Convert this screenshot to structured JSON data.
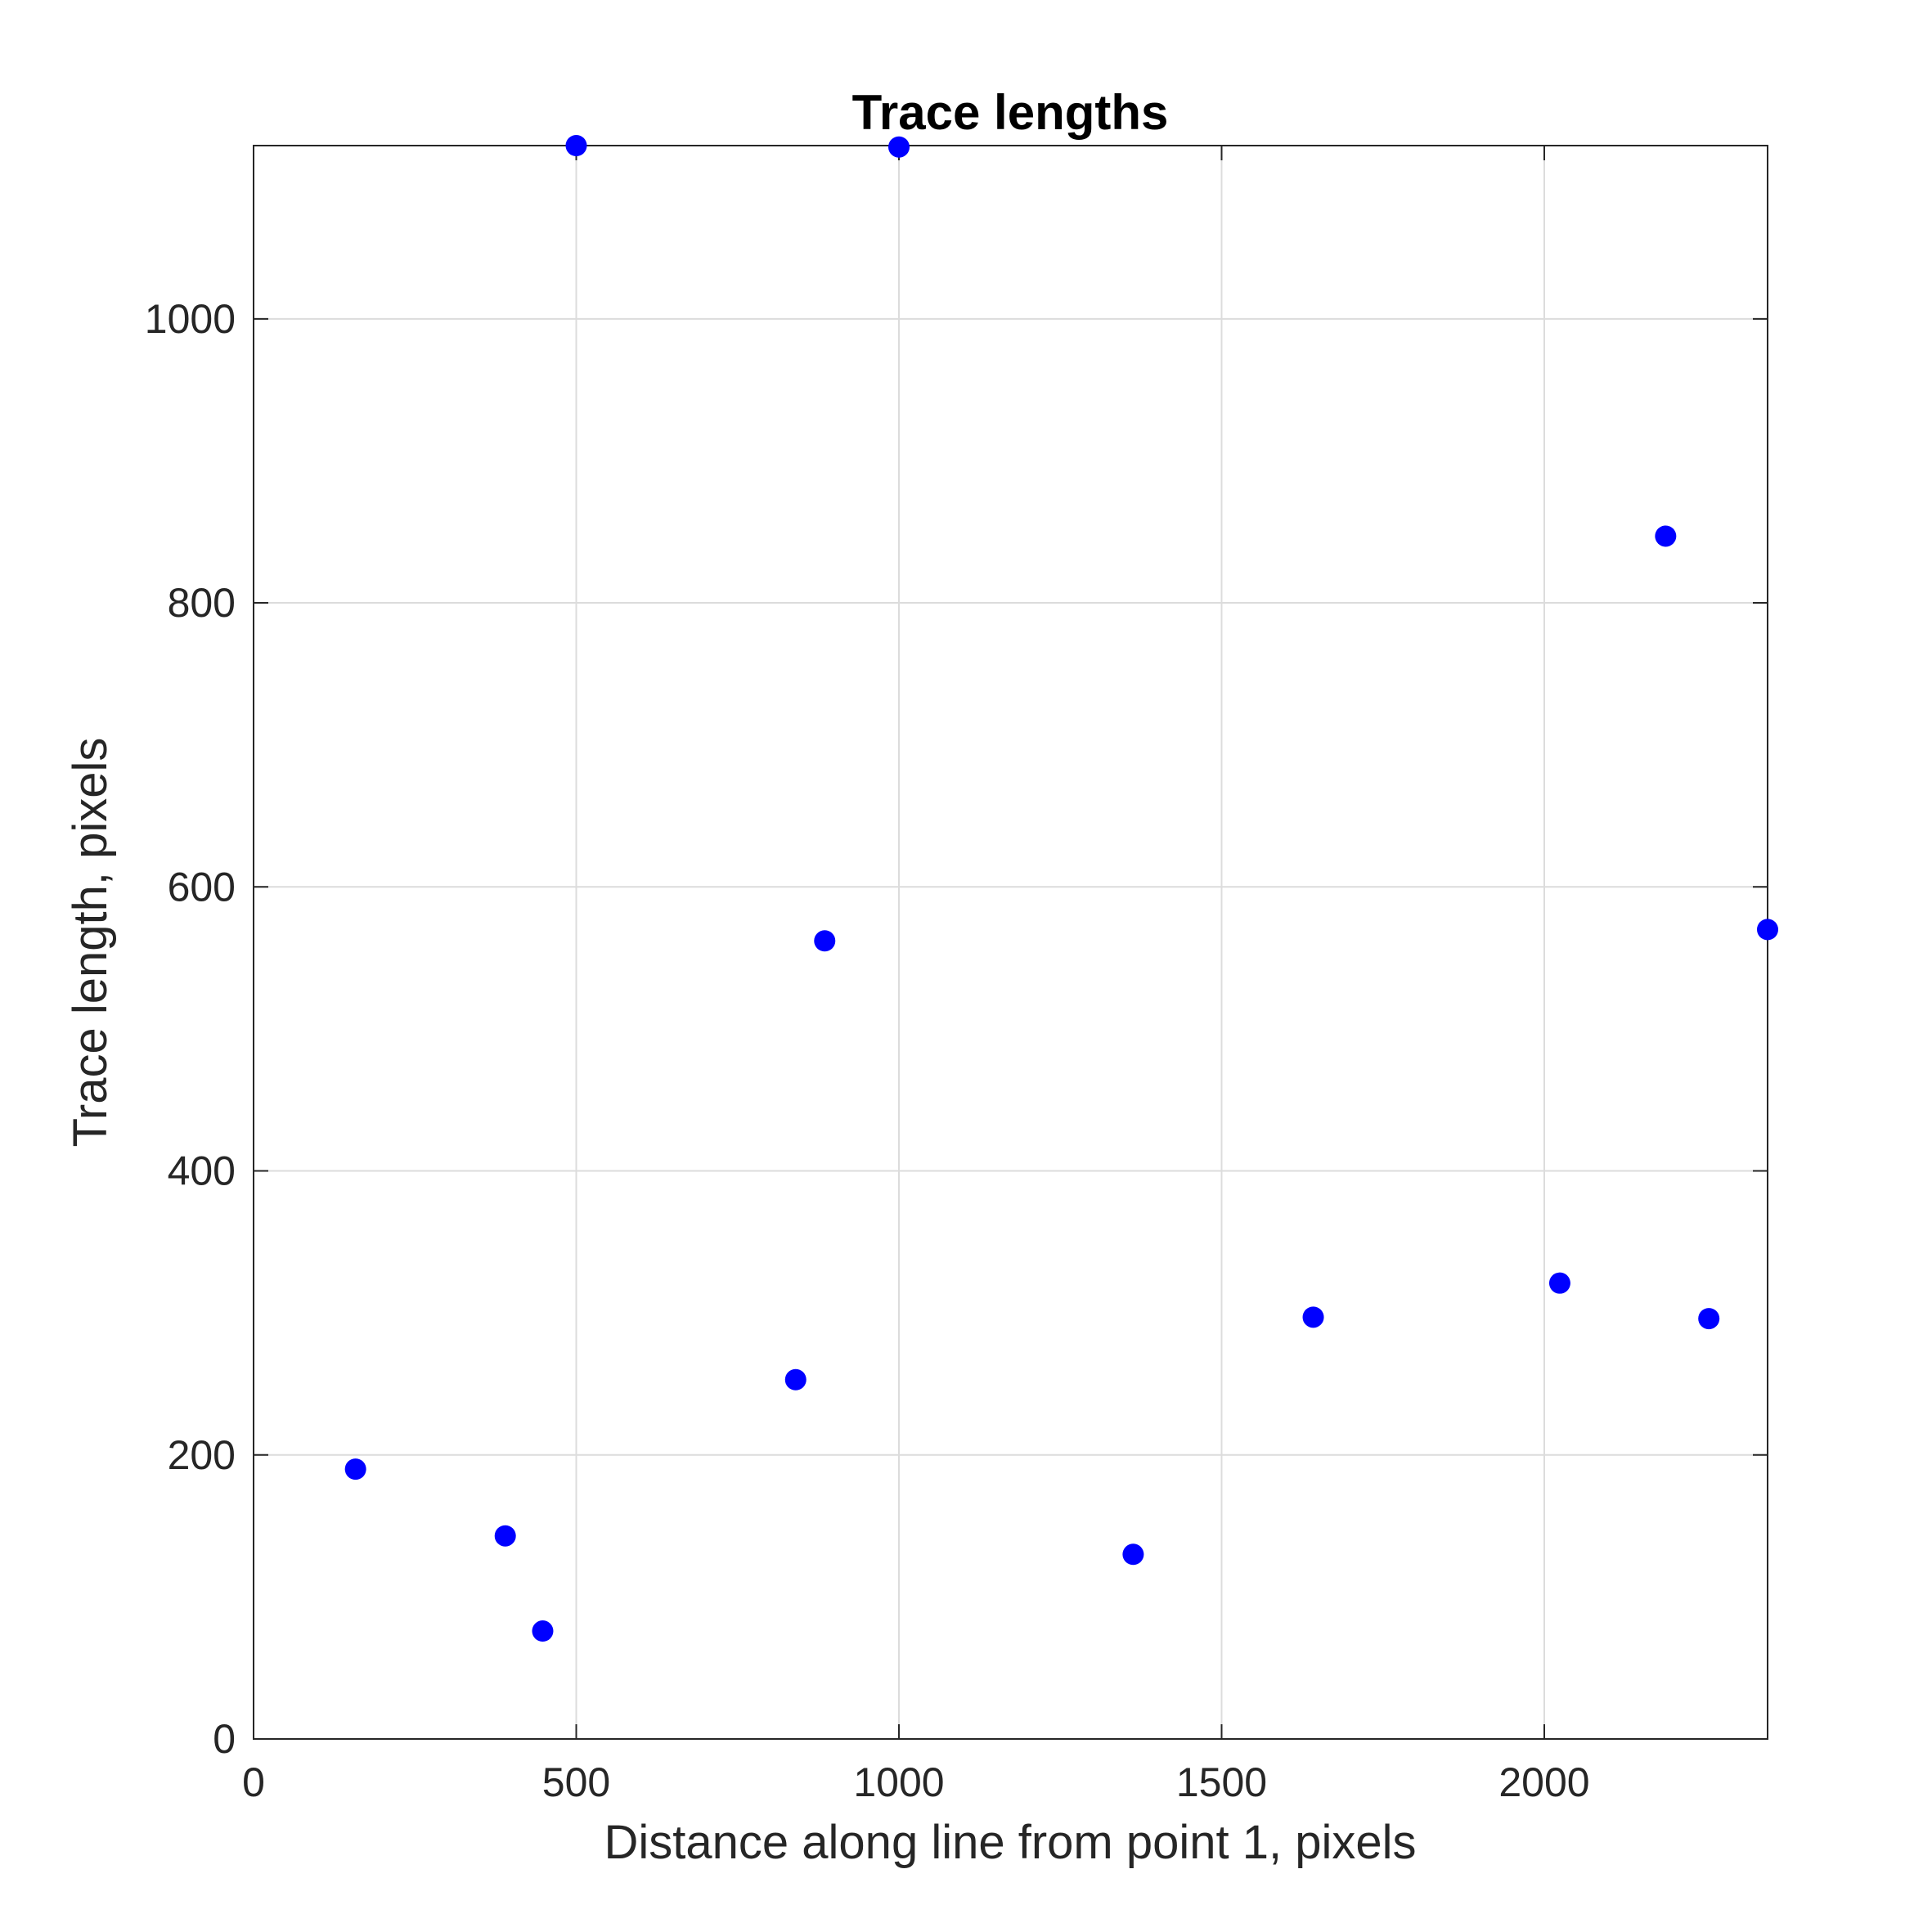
{
  "chart_data": {
    "type": "scatter",
    "title": "Trace lengths",
    "xlabel": "Distance along line from point 1, pixels",
    "ylabel": "Trace length, pixels",
    "xlim": [
      0,
      2346
    ],
    "ylim": [
      0,
      1122
    ],
    "xticks": [
      0,
      500,
      1000,
      1500,
      2000
    ],
    "yticks": [
      0,
      200,
      400,
      600,
      800,
      1000
    ],
    "grid": true,
    "legend": "none",
    "colors": {
      "marker": "#0000ff",
      "grid": "#dcdcdc",
      "axis": "#262626"
    },
    "series": [
      {
        "x": [
          158,
          390,
          448,
          500,
          840,
          885,
          1000,
          1363,
          1642,
          2024,
          2188,
          2255,
          2346
        ],
        "y": [
          190,
          143,
          76,
          1122,
          253,
          562,
          1121,
          130,
          297,
          321,
          847,
          296,
          570
        ]
      }
    ]
  }
}
